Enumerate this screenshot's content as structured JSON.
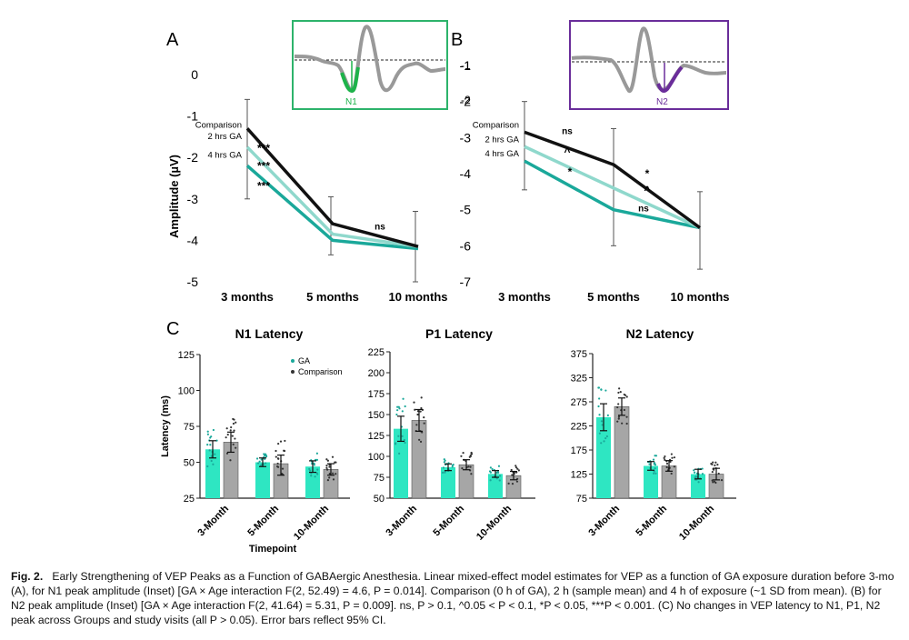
{
  "panels": {
    "a": "A",
    "b": "B",
    "c": "C"
  },
  "chart_data": [
    {
      "type": "line",
      "id": "A",
      "ylabel": "Amplitude (µV)",
      "categories": [
        "3 months",
        "5 months",
        "10 months"
      ],
      "ylim": [
        -5,
        0
      ],
      "yticks": [
        "0",
        "-1",
        "-2",
        "-3",
        "-4",
        "-5"
      ],
      "series": [
        {
          "name": "Comparison",
          "color": "#111111",
          "values": [
            -1.3,
            -3.6,
            -4.15
          ],
          "ci": [
            [
              -0.6,
              -3.0
            ],
            [
              -2.95,
              -4.35
            ],
            [
              -3.3,
              -5.0
            ]
          ]
        },
        {
          "name": "2 hrs GA",
          "color": "#8fd8cc",
          "values": [
            -1.75,
            -3.85,
            -4.15
          ]
        },
        {
          "name": "4 hrs GA",
          "color": "#1aa89a",
          "values": [
            -2.2,
            -4.0,
            -4.2
          ]
        }
      ],
      "annotations": [
        {
          "text": "***",
          "pos": "near 2 hrs GA, 3 months"
        },
        {
          "text": "***",
          "pos": "near 4 hrs GA, 3 months"
        },
        {
          "text": "***",
          "pos": "below 4 hrs GA, 3 months"
        },
        {
          "text": "ns",
          "pos": "above 10 months"
        }
      ],
      "inset": {
        "label": "N1",
        "color": "#1db34a",
        "border": "#2db36b",
        "yticks": [
          "-1",
          "-2"
        ]
      }
    },
    {
      "type": "line",
      "id": "B",
      "categories": [
        "3 months",
        "5 months",
        "10 months"
      ],
      "ylim": [
        -7,
        -1
      ],
      "yticks": [
        "-1",
        "-2",
        "-3",
        "-4",
        "-5",
        "-6",
        "-7"
      ],
      "series": [
        {
          "name": "Comparison",
          "color": "#111111",
          "values": [
            -2.85,
            -3.75,
            -5.5
          ],
          "ci": [
            [
              -2.0,
              -4.45
            ],
            [
              -2.75,
              -6.0
            ],
            [
              -4.5,
              -6.65
            ]
          ]
        },
        {
          "name": "2 hrs GA",
          "color": "#8fd8cc",
          "values": [
            -3.25,
            -4.4,
            -5.5
          ]
        },
        {
          "name": "4 hrs GA",
          "color": "#1aa89a",
          "values": [
            -3.65,
            -5.0,
            -5.5
          ]
        }
      ],
      "annotations": [
        {
          "text": "ns",
          "pos": "3-5 months, top"
        },
        {
          "text": "^",
          "pos": "3-5 months, middle"
        },
        {
          "text": "*",
          "pos": "3-5 months, lower"
        },
        {
          "text": "*",
          "pos": "5-10 months"
        },
        {
          "text": "^",
          "pos": "5-10 months"
        },
        {
          "text": "ns",
          "pos": "5-10 months, lower"
        }
      ],
      "inset": {
        "label": "N2",
        "color": "#6a2d9a",
        "border": "#6a2d9a"
      }
    },
    {
      "type": "bar",
      "id": "N1",
      "title": "N1 Latency",
      "ylabel": "Latency (ms)",
      "xlabel": "Timepoint",
      "categories": [
        "3-Month",
        "5-Month",
        "10-Month"
      ],
      "ylim": [
        25,
        125
      ],
      "yticks": [
        "25",
        "50",
        "75",
        "100",
        "125"
      ],
      "series": [
        {
          "name": "GA",
          "color": "#2ee6c2",
          "values": [
            59,
            50,
            47
          ],
          "ci": [
            [
              53,
              65
            ],
            [
              47,
              53
            ],
            [
              43,
              51
            ]
          ]
        },
        {
          "name": "Comparison",
          "color": "#a6a6a6",
          "values": [
            64,
            49,
            45
          ],
          "ci": [
            [
              57,
              71
            ],
            [
              41,
              55
            ],
            [
              41,
              49
            ]
          ]
        }
      ],
      "legend": [
        "GA",
        "Comparison"
      ]
    },
    {
      "type": "bar",
      "id": "P1",
      "title": "P1 Latency",
      "categories": [
        "3-Month",
        "5-Month",
        "10-Month"
      ],
      "ylim": [
        50,
        225
      ],
      "yticks": [
        "50",
        "75",
        "100",
        "125",
        "150",
        "175",
        "200",
        "225"
      ],
      "series": [
        {
          "name": "GA",
          "color": "#2ee6c2",
          "values": [
            133,
            87,
            79
          ],
          "ci": [
            [
              118,
              148
            ],
            [
              83,
              91
            ],
            [
              75,
              83
            ]
          ]
        },
        {
          "name": "Comparison",
          "color": "#a6a6a6",
          "values": [
            143,
            90,
            77
          ],
          "ci": [
            [
              130,
              156
            ],
            [
              84,
              96
            ],
            [
              72,
              82
            ]
          ]
        }
      ]
    },
    {
      "type": "bar",
      "id": "N2",
      "title": "N2 Latency",
      "categories": [
        "3-Month",
        "5-Month",
        "10-Month"
      ],
      "ylim": [
        75,
        375
      ],
      "yticks": [
        "75",
        "125",
        "175",
        "225",
        "275",
        "325",
        "375"
      ],
      "series": [
        {
          "name": "GA",
          "color": "#2ee6c2",
          "values": [
            243,
            142,
            125
          ],
          "ci": [
            [
              215,
              271
            ],
            [
              133,
              151
            ],
            [
              115,
              135
            ]
          ]
        },
        {
          "name": "Comparison",
          "color": "#a6a6a6",
          "values": [
            265,
            142,
            125
          ],
          "ci": [
            [
              247,
              283
            ],
            [
              131,
              153
            ],
            [
              113,
              137
            ]
          ]
        }
      ]
    }
  ],
  "caption": {
    "fig_label": "Fig. 2.",
    "text": "Early Strengthening of VEP Peaks as a Function of GABAergic Anesthesia. Linear mixed-effect model estimates for VEP as a function of GA exposure duration before 3-mo (A), for N1 peak amplitude (Inset) [GA × Age interaction F(2, 52.49) = 4.6, P = 0.014]. Comparison (0 h of GA), 2 h (sample mean) and 4 h of exposure (~1 SD from mean). (B) for N2 peak amplitude (Inset) [GA × Age interaction F(2, 41.64) = 5.31, P = 0.009]. ns, P > 0.1, ^0.05 < P < 0.1, *P < 0.05, ***P < 0.001. (C) No changes in VEP latency to N1, P1, N2 peak across Groups and study visits (all P > 0.05). Error bars reflect 95% CI."
  }
}
